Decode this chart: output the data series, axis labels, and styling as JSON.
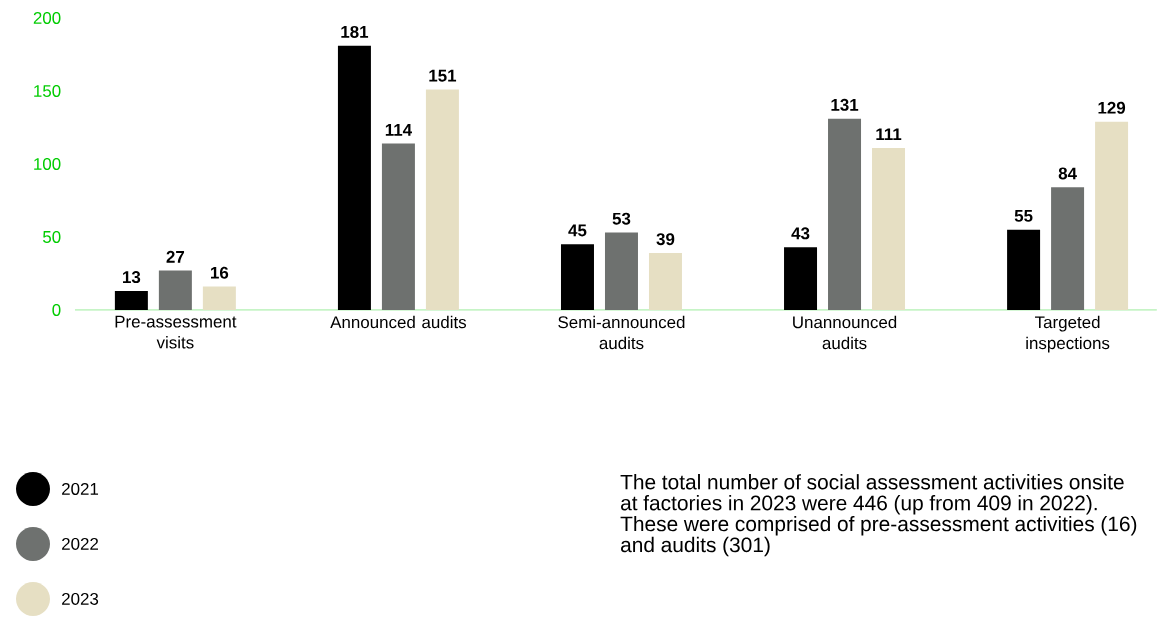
{
  "chart_data": {
    "type": "bar",
    "categories": [
      "Pre-assessment visits",
      "Announced audits",
      "Semi-announced audits",
      "Unannounced audits",
      "Targeted inspections"
    ],
    "series": [
      {
        "name": "2021",
        "color": "#000000",
        "values": [
          13,
          181,
          45,
          43,
          55
        ]
      },
      {
        "name": "2022",
        "color": "#6e716f",
        "values": [
          27,
          114,
          53,
          131,
          84
        ]
      },
      {
        "name": "2023",
        "color": "#e6dfc3",
        "values": [
          16,
          151,
          39,
          111,
          129
        ]
      }
    ],
    "ylim": [
      0,
      200
    ],
    "yticks": [
      0,
      50,
      100,
      150,
      200
    ],
    "data_labels": true,
    "grid": false,
    "legend": "bottom left",
    "annotations": [
      "The total number of social assessment activities onsite at factories in 2023 were 446 (up from 409 in 2022). These were comprised of pre-assessment activities (16) and audits (301)"
    ]
  }
}
